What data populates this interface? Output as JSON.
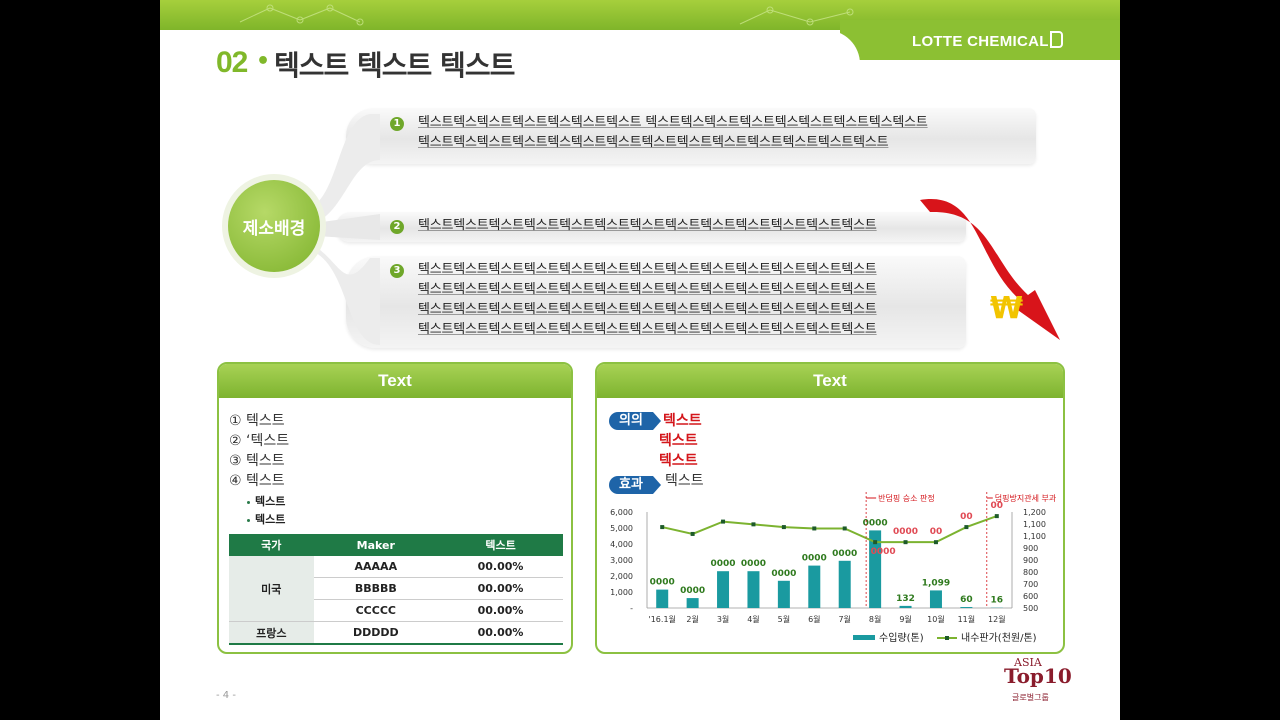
{
  "header": {
    "brand": "LOTTE CHEMICAL",
    "number": "02",
    "title": "텍스트 텍스트 텍스트"
  },
  "hub": {
    "label": "제소배경"
  },
  "branches": [
    {
      "num": "1",
      "lines": [
        "텍스트텍스텍스트텍스트텍스텍스트텍스트 텍스트텍스텍스트텍스트텍스텍스트텍스트텍스텍스트",
        "텍스트텍스텍스트텍스트텍스텍스트텍스트텍스트텍스트텍스트텍스트텍스트텍스트텍스트"
      ]
    },
    {
      "num": "2",
      "lines": [
        "텍스트텍스트텍스트텍스트텍스트텍스트텍스트텍스트텍스트텍스트텍스트텍스트텍스트"
      ]
    },
    {
      "num": "3",
      "lines": [
        "텍스트텍스트텍스트텍스트텍스트텍스트텍스트텍스트텍스트텍스트텍스트텍스트텍스트",
        "텍스트텍스트텍스트텍스트텍스트텍스트텍스트텍스트텍스트텍스트텍스트텍스트텍스트",
        "텍스트텍스트텍스트텍스트텍스트텍스트텍스트텍스트텍스트텍스트텍스트텍스트텍스트",
        "텍스트텍스트텍스트텍스트텍스트텍스트텍스트텍스트텍스트텍스트텍스트텍스트텍스트"
      ]
    }
  ],
  "left_panel": {
    "title": "Text",
    "items": [
      "① 텍스트",
      "② ‘텍스트",
      "③ 텍스트",
      "④ 텍스트"
    ],
    "subitems": [
      "텍스트",
      "텍스트"
    ],
    "table": {
      "headers": [
        "국가",
        "Maker",
        "텍스트"
      ],
      "rows": [
        {
          "country": "미국",
          "maker": "AAAAA",
          "value": "00.00%"
        },
        {
          "country": "",
          "maker": "BBBBB",
          "value": "00.00%"
        },
        {
          "country": "",
          "maker": "CCCCC",
          "value": "00.00%"
        },
        {
          "country": "프랑스",
          "maker": "DDDDD",
          "value": "00.00%"
        }
      ]
    }
  },
  "right_panel": {
    "title": "Text",
    "tag1": "의의",
    "tag2": "효과",
    "red_lines": [
      "텍스트",
      "텍스트",
      "텍스트"
    ],
    "black_line": "텍스트"
  },
  "chart_data": {
    "type": "bar",
    "categories": [
      "'16.1월",
      "2월",
      "3월",
      "4월",
      "5월",
      "6월",
      "7월",
      "8월",
      "9월",
      "10월",
      "11월",
      "12월"
    ],
    "series": [
      {
        "name": "수입량(톤)",
        "type": "bar",
        "values": [
          1150,
          620,
          2300,
          2300,
          1700,
          2650,
          2950,
          4850,
          132,
          1099,
          60,
          16
        ],
        "labels": [
          "0000",
          "0000",
          "0000",
          "0000",
          "0000",
          "0000",
          "0000",
          "0000",
          "132",
          "1,099",
          "60",
          "16"
        ],
        "color": "#1a9aa0"
      },
      {
        "name": "내수판가(천원/톤)",
        "type": "line",
        "values": [
          1090,
          1040,
          1130,
          1110,
          1090,
          1080,
          1080,
          980,
          980,
          980,
          1090,
          1170
        ],
        "labels": [
          "",
          "",
          "",
          "",
          "",
          "",
          "",
          "0000",
          "0000",
          "00",
          "00",
          "00"
        ],
        "color": "#7cb330"
      }
    ],
    "y_left": {
      "ticks": [
        "6,000",
        "5,000",
        "4,000",
        "3,000",
        "2,000",
        "1,000",
        "-"
      ],
      "range": [
        0,
        6000
      ]
    },
    "y_right": {
      "ticks": [
        "1,200",
        "1,100",
        "1,100",
        "900",
        "900",
        "800",
        "700",
        "600",
        "500"
      ],
      "range": [
        500,
        1200
      ]
    },
    "annotations": [
      "반덤핑 승소 판정",
      "덤핑방지관세 부과"
    ]
  },
  "footer": {
    "page": "- 4 -",
    "logo_text": "ASIA TOP10",
    "logo_sub": "글로벌그룹"
  }
}
